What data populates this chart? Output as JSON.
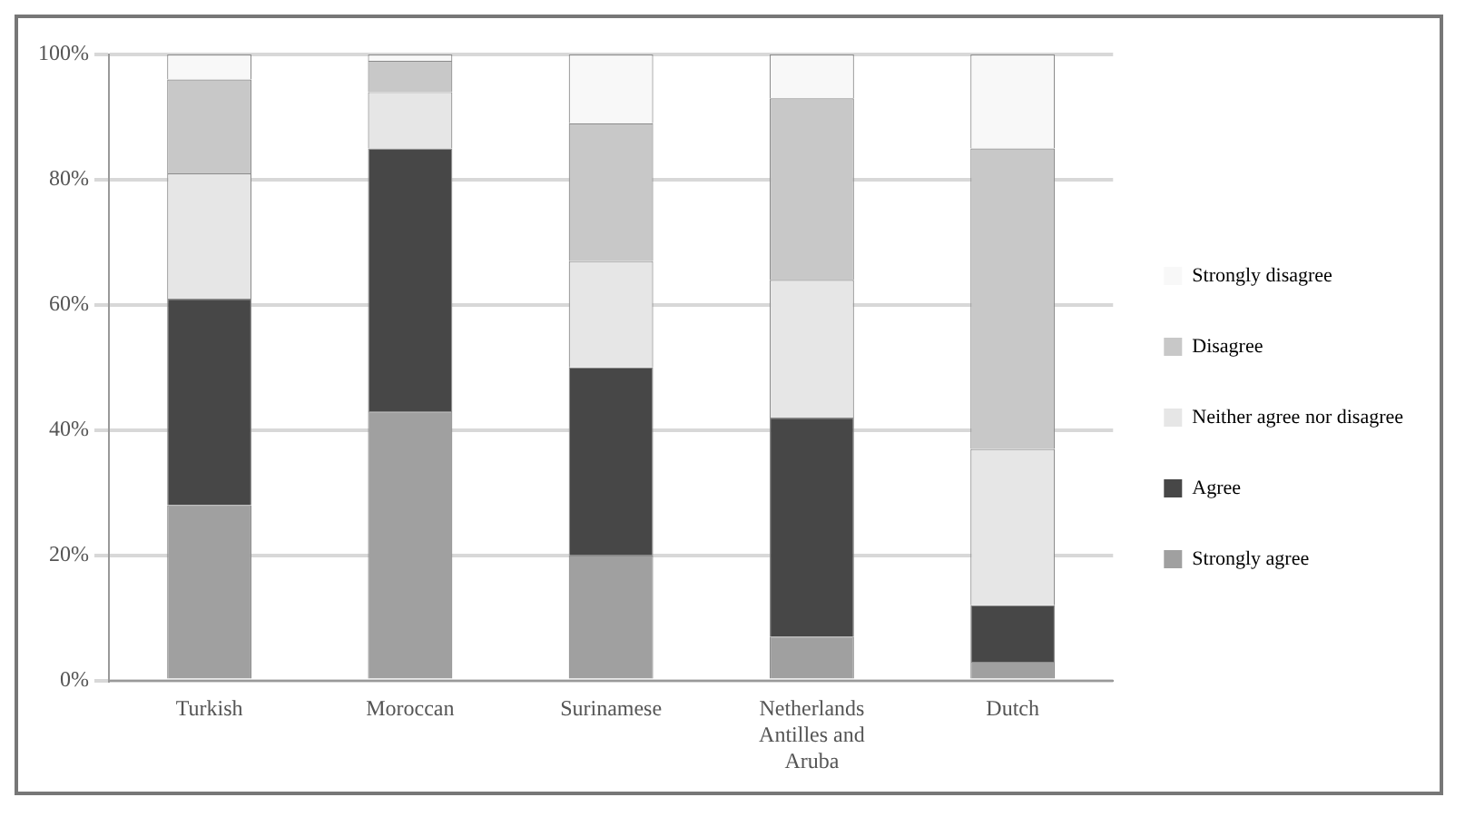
{
  "chart_data": {
    "type": "bar",
    "stacked": true,
    "categories": [
      "Turkish",
      "Moroccan",
      "Surinamese",
      "Netherlands Antilles and Aruba",
      "Dutch"
    ],
    "series": [
      {
        "name": "Strongly agree",
        "color": "#a0a0a0",
        "values": [
          28,
          43,
          20,
          7,
          3
        ]
      },
      {
        "name": "Agree",
        "color": "#474747",
        "values": [
          33,
          42,
          30,
          35,
          9
        ]
      },
      {
        "name": "Neither agree nor disagree",
        "color": "#e6e6e6",
        "values": [
          20,
          9,
          17,
          22,
          25
        ]
      },
      {
        "name": "Disagree",
        "color": "#c8c8c8",
        "values": [
          15,
          5,
          22,
          29,
          48
        ]
      },
      {
        "name": "Strongly disagree",
        "color": "#f8f8f8",
        "values": [
          4,
          1,
          11,
          7,
          15
        ]
      }
    ],
    "ylim": [
      0,
      100
    ],
    "yticks": [
      {
        "value": 0,
        "label": "0%"
      },
      {
        "value": 20,
        "label": "20%"
      },
      {
        "value": 40,
        "label": "40%"
      },
      {
        "value": 60,
        "label": "60%"
      },
      {
        "value": 80,
        "label": "80%"
      },
      {
        "value": 100,
        "label": "100%"
      }
    ],
    "grid": "y",
    "legend": "right"
  }
}
